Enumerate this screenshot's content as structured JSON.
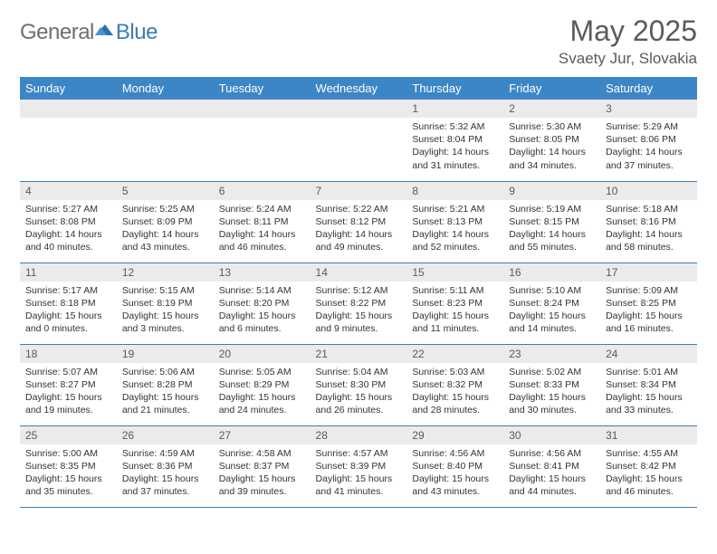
{
  "brand": {
    "left": "General",
    "right": "Blue",
    "logo_color": "#3a7db5",
    "text_dark": "#6f6f6f"
  },
  "title": "May 2025",
  "location": "Svaety Jur, Slovakia",
  "header_bg": "#3d86c6",
  "accent": "#3a7db5",
  "daynum_bg": "#ecebeb",
  "weekdays": [
    "Sunday",
    "Monday",
    "Tuesday",
    "Wednesday",
    "Thursday",
    "Friday",
    "Saturday"
  ],
  "weeks": [
    [
      null,
      null,
      null,
      null,
      {
        "n": "1",
        "sr": "5:32 AM",
        "ss": "8:04 PM",
        "dl": "14 hours and 31 minutes."
      },
      {
        "n": "2",
        "sr": "5:30 AM",
        "ss": "8:05 PM",
        "dl": "14 hours and 34 minutes."
      },
      {
        "n": "3",
        "sr": "5:29 AM",
        "ss": "8:06 PM",
        "dl": "14 hours and 37 minutes."
      }
    ],
    [
      {
        "n": "4",
        "sr": "5:27 AM",
        "ss": "8:08 PM",
        "dl": "14 hours and 40 minutes."
      },
      {
        "n": "5",
        "sr": "5:25 AM",
        "ss": "8:09 PM",
        "dl": "14 hours and 43 minutes."
      },
      {
        "n": "6",
        "sr": "5:24 AM",
        "ss": "8:11 PM",
        "dl": "14 hours and 46 minutes."
      },
      {
        "n": "7",
        "sr": "5:22 AM",
        "ss": "8:12 PM",
        "dl": "14 hours and 49 minutes."
      },
      {
        "n": "8",
        "sr": "5:21 AM",
        "ss": "8:13 PM",
        "dl": "14 hours and 52 minutes."
      },
      {
        "n": "9",
        "sr": "5:19 AM",
        "ss": "8:15 PM",
        "dl": "14 hours and 55 minutes."
      },
      {
        "n": "10",
        "sr": "5:18 AM",
        "ss": "8:16 PM",
        "dl": "14 hours and 58 minutes."
      }
    ],
    [
      {
        "n": "11",
        "sr": "5:17 AM",
        "ss": "8:18 PM",
        "dl": "15 hours and 0 minutes."
      },
      {
        "n": "12",
        "sr": "5:15 AM",
        "ss": "8:19 PM",
        "dl": "15 hours and 3 minutes."
      },
      {
        "n": "13",
        "sr": "5:14 AM",
        "ss": "8:20 PM",
        "dl": "15 hours and 6 minutes."
      },
      {
        "n": "14",
        "sr": "5:12 AM",
        "ss": "8:22 PM",
        "dl": "15 hours and 9 minutes."
      },
      {
        "n": "15",
        "sr": "5:11 AM",
        "ss": "8:23 PM",
        "dl": "15 hours and 11 minutes."
      },
      {
        "n": "16",
        "sr": "5:10 AM",
        "ss": "8:24 PM",
        "dl": "15 hours and 14 minutes."
      },
      {
        "n": "17",
        "sr": "5:09 AM",
        "ss": "8:25 PM",
        "dl": "15 hours and 16 minutes."
      }
    ],
    [
      {
        "n": "18",
        "sr": "5:07 AM",
        "ss": "8:27 PM",
        "dl": "15 hours and 19 minutes."
      },
      {
        "n": "19",
        "sr": "5:06 AM",
        "ss": "8:28 PM",
        "dl": "15 hours and 21 minutes."
      },
      {
        "n": "20",
        "sr": "5:05 AM",
        "ss": "8:29 PM",
        "dl": "15 hours and 24 minutes."
      },
      {
        "n": "21",
        "sr": "5:04 AM",
        "ss": "8:30 PM",
        "dl": "15 hours and 26 minutes."
      },
      {
        "n": "22",
        "sr": "5:03 AM",
        "ss": "8:32 PM",
        "dl": "15 hours and 28 minutes."
      },
      {
        "n": "23",
        "sr": "5:02 AM",
        "ss": "8:33 PM",
        "dl": "15 hours and 30 minutes."
      },
      {
        "n": "24",
        "sr": "5:01 AM",
        "ss": "8:34 PM",
        "dl": "15 hours and 33 minutes."
      }
    ],
    [
      {
        "n": "25",
        "sr": "5:00 AM",
        "ss": "8:35 PM",
        "dl": "15 hours and 35 minutes."
      },
      {
        "n": "26",
        "sr": "4:59 AM",
        "ss": "8:36 PM",
        "dl": "15 hours and 37 minutes."
      },
      {
        "n": "27",
        "sr": "4:58 AM",
        "ss": "8:37 PM",
        "dl": "15 hours and 39 minutes."
      },
      {
        "n": "28",
        "sr": "4:57 AM",
        "ss": "8:39 PM",
        "dl": "15 hours and 41 minutes."
      },
      {
        "n": "29",
        "sr": "4:56 AM",
        "ss": "8:40 PM",
        "dl": "15 hours and 43 minutes."
      },
      {
        "n": "30",
        "sr": "4:56 AM",
        "ss": "8:41 PM",
        "dl": "15 hours and 44 minutes."
      },
      {
        "n": "31",
        "sr": "4:55 AM",
        "ss": "8:42 PM",
        "dl": "15 hours and 46 minutes."
      }
    ]
  ],
  "labels": {
    "sunrise": "Sunrise:",
    "sunset": "Sunset:",
    "daylight": "Daylight:"
  }
}
